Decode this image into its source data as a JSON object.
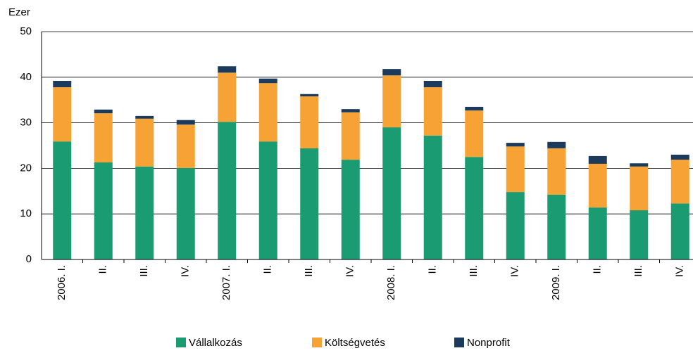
{
  "chart_data": {
    "type": "stacked_bar",
    "y_label": "Ezer",
    "categories": [
      "2006. I.",
      "II.",
      "III.",
      "IV.",
      "2007. I.",
      "II.",
      "III.",
      "IV.",
      "2008. I.",
      "II.",
      "III.",
      "IV.",
      "2009. I.",
      "II.",
      "III.",
      "IV."
    ],
    "series": [
      {
        "name": "Vállalkozás",
        "color": "#1a9b72",
        "values": [
          25.9,
          21.3,
          20.4,
          20.1,
          30.2,
          25.9,
          24.4,
          21.9,
          29.0,
          27.2,
          22.5,
          14.8,
          14.2,
          11.4,
          10.8,
          12.3
        ]
      },
      {
        "name": "Költségvetés",
        "color": "#f7a234",
        "values": [
          11.9,
          10.8,
          10.5,
          9.5,
          10.8,
          12.8,
          11.4,
          10.4,
          11.4,
          10.6,
          10.2,
          10.0,
          10.2,
          9.6,
          9.6,
          9.6
        ]
      },
      {
        "name": "Nonprofit",
        "color": "#1b3a5c",
        "values": [
          1.4,
          0.8,
          0.6,
          1.0,
          1.4,
          1.0,
          0.5,
          0.7,
          1.4,
          1.4,
          0.8,
          0.8,
          1.4,
          1.7,
          0.7,
          1.1
        ]
      }
    ],
    "ylim": [
      0,
      50
    ],
    "yticks": [
      0,
      10,
      20,
      30,
      40,
      50
    ],
    "grid": true,
    "legend": "bottom"
  }
}
